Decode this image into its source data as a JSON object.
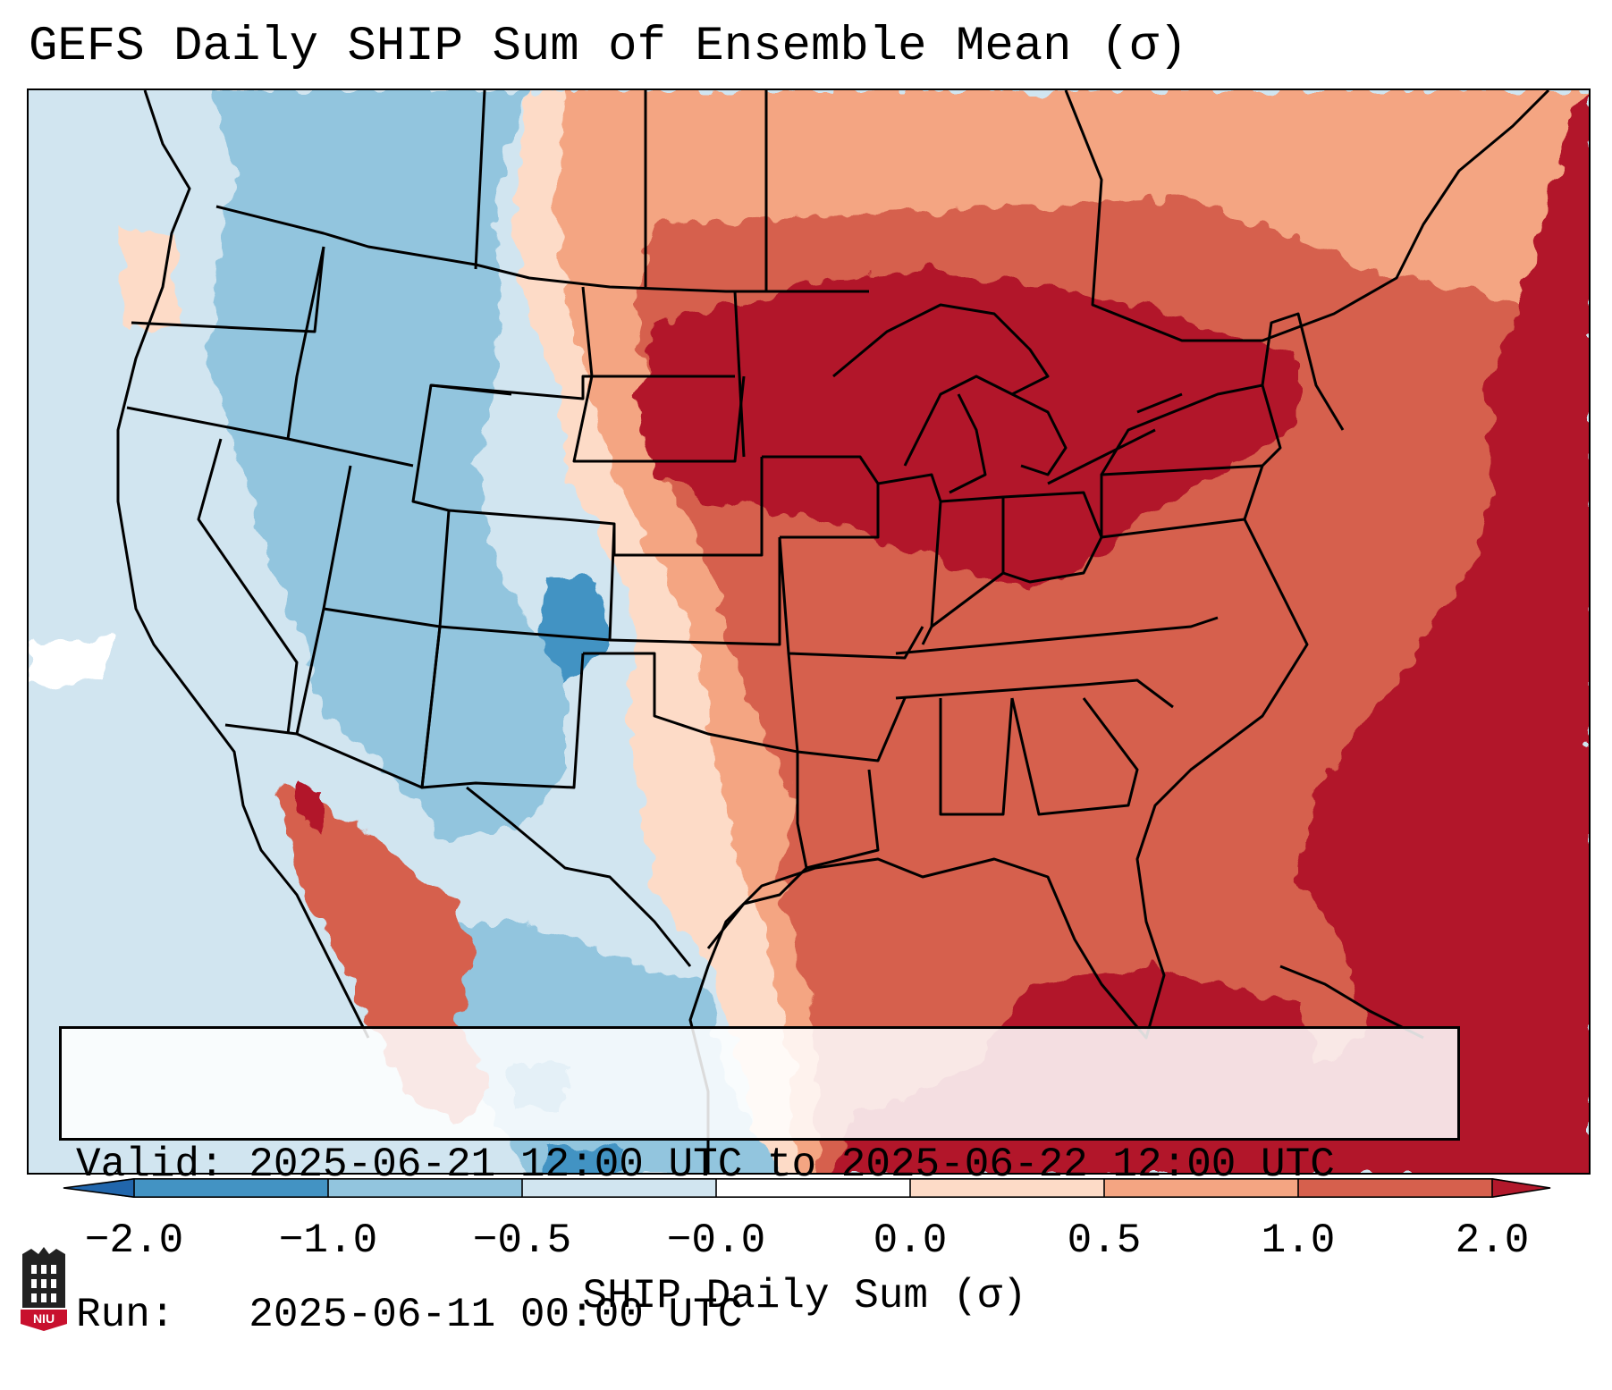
{
  "title": "GEFS Daily SHIP Sum of Ensemble Mean (σ)",
  "map": {
    "projection_region": "Contiguous United States, northern Mexico, Gulf of Mexico, western Atlantic",
    "colors": {
      "strong_negative": "#4393c3",
      "moderate_negative": "#92c5de",
      "weak_negative": "#d1e5f0",
      "weak_positive": "#fddbc7",
      "moderate_positive": "#f4a582",
      "strong_positive": "#d6604d",
      "very_strong_positive": "#b2182b",
      "outside_domain": "#ffffff",
      "boundaries": "#000000"
    }
  },
  "info": {
    "valid_line": "Valid: 2025-06-21 12:00 UTC to 2025-06-22 12:00 UTC",
    "run_line": "Run:   2025-06-11 00:00 UTC"
  },
  "colorbar": {
    "label": "SHIP Daily Sum (σ)",
    "ticks": [
      "−2.0",
      "−1.0",
      "−0.5",
      "−0.0",
      "0.0",
      "0.5",
      "1.0",
      "2.0"
    ],
    "segment_colors": [
      "#4393c3",
      "#92c5de",
      "#d1e5f0",
      "#ffffff",
      "#fddbc7",
      "#f4a582",
      "#d6604d"
    ],
    "under_color": "#2166ac",
    "over_color": "#b2182b"
  },
  "logo": {
    "text": "NIU"
  }
}
